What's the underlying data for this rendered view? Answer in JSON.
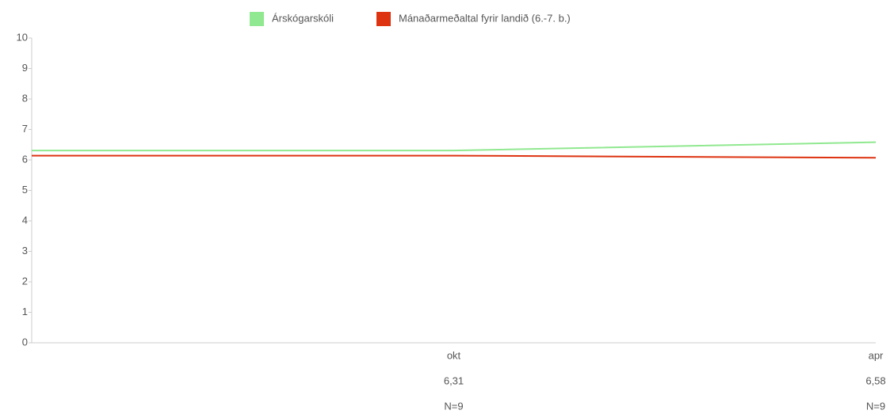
{
  "chart_data": {
    "type": "line",
    "categories": [
      null,
      "okt",
      "apr"
    ],
    "series": [
      {
        "name": "Árskógarskóli",
        "color": "#90e890",
        "values": [
          6.31,
          6.31,
          6.58
        ],
        "value_labels": [
          null,
          "6,31",
          "6,58"
        ]
      },
      {
        "name": "Mánaðarmeðaltal fyrir landið (6.-7. b.)",
        "color": "#dd3311",
        "values": [
          6.14,
          6.14,
          6.07
        ]
      }
    ],
    "n_labels": [
      null,
      "N=9",
      "N=9"
    ],
    "ylim": [
      0,
      10
    ],
    "yticks": [
      0,
      1,
      2,
      3,
      4,
      5,
      6,
      7,
      8,
      9,
      10
    ]
  }
}
